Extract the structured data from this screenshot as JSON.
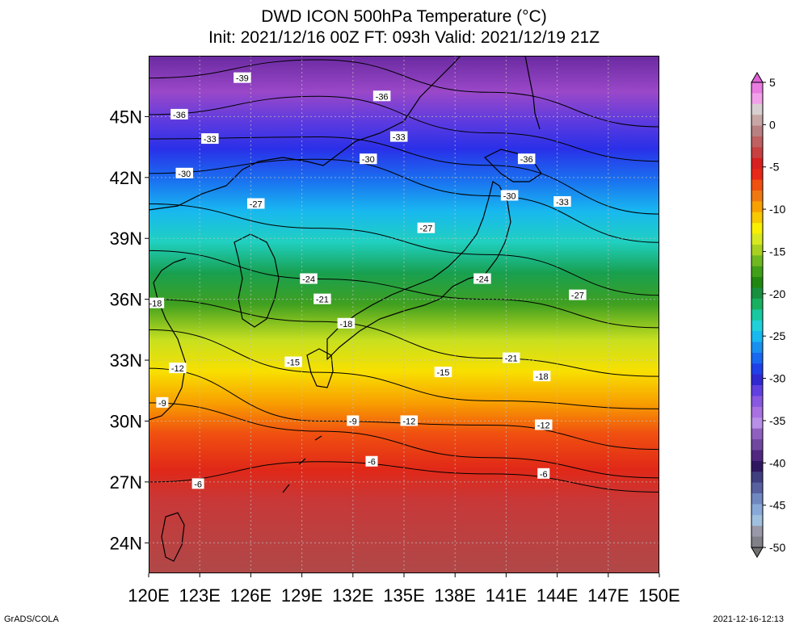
{
  "title_line1": "DWD ICON 500hPa Temperature (°C)",
  "title_line2": "Init: 2021/12/16 00Z  FT: 093h  Valid: 2021/12/19 21Z",
  "map": {
    "lon_labels": [
      "120E",
      "123E",
      "126E",
      "129E",
      "132E",
      "135E",
      "138E",
      "141E",
      "144E",
      "147E",
      "150E"
    ],
    "lat_labels": [
      "45N",
      "42N",
      "39N",
      "36N",
      "33N",
      "30N",
      "27N",
      "24N"
    ],
    "lon_range": [
      120,
      150
    ],
    "lat_range": [
      22.5,
      48
    ],
    "contour_labels": [
      {
        "text": "-39",
        "lon": 125.5,
        "lat": 46.9
      },
      {
        "text": "-36",
        "lon": 121.8,
        "lat": 45.1
      },
      {
        "text": "-36",
        "lon": 133.7,
        "lat": 46.0
      },
      {
        "text": "-36",
        "lon": 142.2,
        "lat": 42.9
      },
      {
        "text": "-33",
        "lon": 123.6,
        "lat": 43.9
      },
      {
        "text": "-33",
        "lon": 134.7,
        "lat": 44.0
      },
      {
        "text": "-33",
        "lon": 144.3,
        "lat": 40.8
      },
      {
        "text": "-30",
        "lon": 122.1,
        "lat": 42.2
      },
      {
        "text": "-30",
        "lon": 132.9,
        "lat": 42.9
      },
      {
        "text": "-30",
        "lon": 141.2,
        "lat": 41.1
      },
      {
        "text": "-27",
        "lon": 126.3,
        "lat": 40.7
      },
      {
        "text": "-27",
        "lon": 136.3,
        "lat": 39.5
      },
      {
        "text": "-27",
        "lon": 145.2,
        "lat": 36.2
      },
      {
        "text": "-24",
        "lon": 129.4,
        "lat": 37.0
      },
      {
        "text": "-24",
        "lon": 139.6,
        "lat": 37.0
      },
      {
        "text": "-21",
        "lon": 130.2,
        "lat": 36.0
      },
      {
        "text": "-21",
        "lon": 141.3,
        "lat": 33.1
      },
      {
        "text": "-18",
        "lon": 120.4,
        "lat": 35.8
      },
      {
        "text": "-18",
        "lon": 131.6,
        "lat": 34.8
      },
      {
        "text": "-18",
        "lon": 143.1,
        "lat": 32.2
      },
      {
        "text": "-15",
        "lon": 128.5,
        "lat": 32.9
      },
      {
        "text": "-15",
        "lon": 137.3,
        "lat": 32.4
      },
      {
        "text": "-12",
        "lon": 121.7,
        "lat": 32.6
      },
      {
        "text": "-12",
        "lon": 135.3,
        "lat": 30.0
      },
      {
        "text": "-12",
        "lon": 143.2,
        "lat": 29.8
      },
      {
        "text": "-9",
        "lon": 120.8,
        "lat": 30.9
      },
      {
        "text": "-9",
        "lon": 132.0,
        "lat": 30.0
      },
      {
        "text": "-6",
        "lon": 122.9,
        "lat": 26.9
      },
      {
        "text": "-6",
        "lon": 133.1,
        "lat": 28.0
      },
      {
        "text": "-6",
        "lon": 143.2,
        "lat": 27.4
      }
    ]
  },
  "colorbar": {
    "labels": [
      "5",
      "0",
      "-5",
      "-10",
      "-15",
      "-20",
      "-25",
      "-30",
      "-35",
      "-40",
      "-45",
      "-50"
    ],
    "colors": [
      "#e87ce0",
      "#f2a0ea",
      "#d8d0d0",
      "#c8a6a6",
      "#b88080",
      "#c06060",
      "#c84040",
      "#d82020",
      "#e82818",
      "#f05010",
      "#f07810",
      "#f8a000",
      "#f8c800",
      "#f8f000",
      "#d8e820",
      "#a8d020",
      "#70b820",
      "#40a018",
      "#208810",
      "#189040",
      "#18b060",
      "#18c8a0",
      "#20d0d8",
      "#18b8f0",
      "#1890f0",
      "#1868f0",
      "#2040e8",
      "#3028d0",
      "#6040e0",
      "#8858e0",
      "#a870e0",
      "#b890e8",
      "#9060c0",
      "#7048a0",
      "#502880",
      "#301860",
      "#404080",
      "#5860a0",
      "#7088c0",
      "#88a8d8",
      "#a0c0e0",
      "#9898a8",
      "#808088"
    ]
  },
  "footer_left": "GrADS/COLA",
  "footer_right": "2021-12-16-12:13"
}
